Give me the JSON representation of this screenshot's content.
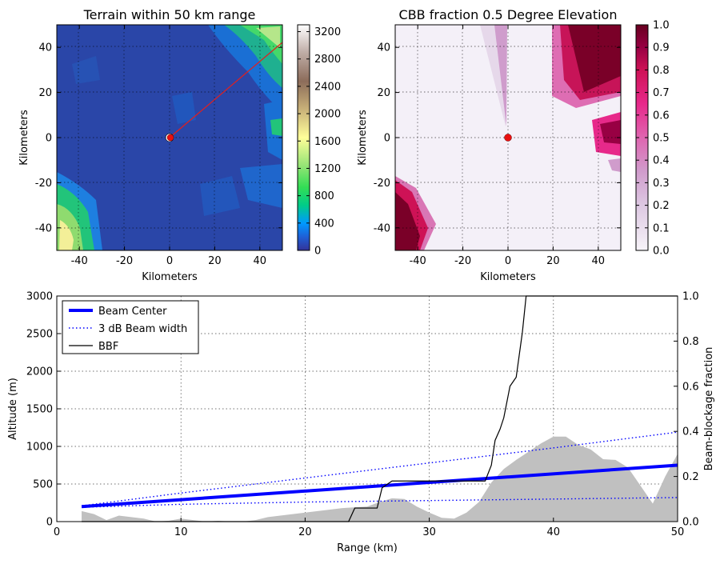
{
  "chart_data": [
    {
      "type": "heatmap",
      "title": "Terrain within 50 km range",
      "xlabel": "Kilometers",
      "ylabel": "Kilometers",
      "xlim": [
        -50,
        50
      ],
      "ylim": [
        -50,
        50
      ],
      "xticks": [
        -40,
        -20,
        0,
        20,
        40
      ],
      "yticks": [
        -40,
        -20,
        0,
        20,
        40
      ],
      "colorbar": {
        "ticks": [
          0,
          400,
          800,
          1200,
          1600,
          2000,
          2400,
          2800,
          3200
        ],
        "range": [
          0,
          3300
        ],
        "colormap": "terrain"
      },
      "radar_location": [
        0,
        0
      ],
      "transect_end": [
        50,
        42
      ],
      "transect_color": "#e02020",
      "grid": true
    },
    {
      "type": "heatmap",
      "title": "CBB fraction 0.5 Degree Elevation",
      "xlabel": "Kilometers",
      "ylabel": "Kilometers",
      "xlim": [
        -50,
        50
      ],
      "ylim": [
        -50,
        50
      ],
      "xticks": [
        -40,
        -20,
        0,
        20,
        40
      ],
      "yticks": [
        -40,
        -20,
        0,
        20,
        40
      ],
      "colorbar": {
        "ticks": [
          0.0,
          0.1,
          0.2,
          0.3,
          0.4,
          0.5,
          0.6,
          0.7,
          0.8,
          0.9,
          1.0
        ],
        "range": [
          0,
          1
        ],
        "colormap": "PuRd"
      },
      "radar_location": [
        0,
        0
      ],
      "grid": true
    },
    {
      "type": "line",
      "xlabel": "Range (km)",
      "ylabel": "Altitude (m)",
      "ylabel_right": "Beam-blockage fraction",
      "xlim": [
        0,
        50
      ],
      "ylim": [
        0,
        3000
      ],
      "ylim_right": [
        0,
        1
      ],
      "xticks": [
        0,
        10,
        20,
        30,
        40,
        50
      ],
      "yticks": [
        0,
        500,
        1000,
        1500,
        2000,
        2500,
        3000
      ],
      "yticks_right": [
        0.0,
        0.2,
        0.4,
        0.6,
        0.8,
        1.0
      ],
      "grid": true,
      "legend_position": "top-left",
      "series": [
        {
          "name": "Beam Center",
          "axis": "left",
          "style": "solid",
          "color": "#0000ff",
          "x": [
            2,
            50
          ],
          "y": [
            200,
            750
          ]
        },
        {
          "name": "3 dB Beam width",
          "axis": "left",
          "style": "dotted",
          "color": "#0000ff",
          "upper_x": [
            2,
            10,
            20,
            30,
            40,
            50
          ],
          "upper_y": [
            210,
            380,
            580,
            780,
            980,
            1190
          ],
          "lower_x": [
            2,
            10,
            20,
            30,
            40,
            50
          ],
          "lower_y": [
            190,
            230,
            260,
            280,
            300,
            320
          ]
        },
        {
          "name": "BBF",
          "axis": "right",
          "style": "solid",
          "color": "#000000",
          "x": [
            2,
            23.5,
            24,
            25.8,
            26.2,
            27,
            34.5,
            35,
            35.3,
            35.7,
            36,
            36.5,
            37,
            37.5,
            37.8,
            50
          ],
          "y": [
            0,
            0,
            0.06,
            0.06,
            0.15,
            0.18,
            0.18,
            0.25,
            0.36,
            0.41,
            0.46,
            0.6,
            0.64,
            0.84,
            1.0,
            1.0
          ]
        }
      ],
      "terrain_fill": {
        "color": "#c0c0c0",
        "x": [
          2,
          3,
          4,
          5,
          6,
          7,
          8,
          9,
          10,
          11,
          12,
          13,
          14,
          15,
          16,
          17,
          18,
          19,
          20,
          21,
          22,
          23,
          24,
          25,
          26,
          27,
          28,
          29,
          30,
          31,
          32,
          33,
          34,
          35,
          36,
          37,
          38,
          39,
          40,
          41,
          42,
          43,
          44,
          45,
          46,
          47,
          48,
          49,
          50
        ],
        "y": [
          140,
          100,
          20,
          80,
          60,
          40,
          0,
          10,
          40,
          20,
          0,
          10,
          0,
          0,
          20,
          60,
          80,
          100,
          120,
          140,
          160,
          180,
          190,
          200,
          260,
          310,
          300,
          200,
          120,
          50,
          40,
          120,
          260,
          520,
          700,
          820,
          930,
          1040,
          1130,
          1130,
          1020,
          960,
          830,
          820,
          720,
          480,
          240,
          600,
          900
        ]
      }
    }
  ]
}
